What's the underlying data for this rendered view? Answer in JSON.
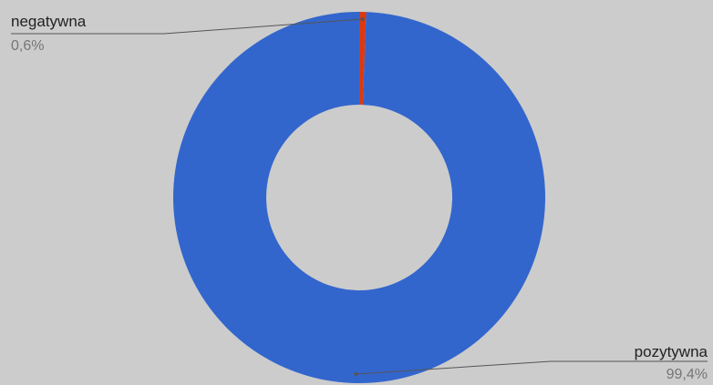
{
  "chart_data": {
    "type": "pie",
    "donut": true,
    "categories": [
      "negatywna",
      "pozytywna"
    ],
    "values": [
      0.6,
      99.4
    ],
    "value_labels": [
      "0,6%",
      "99,4%"
    ],
    "colors": [
      "#dc3912",
      "#3366cc"
    ],
    "title": "",
    "legend": "none (labels with leader lines)"
  }
}
